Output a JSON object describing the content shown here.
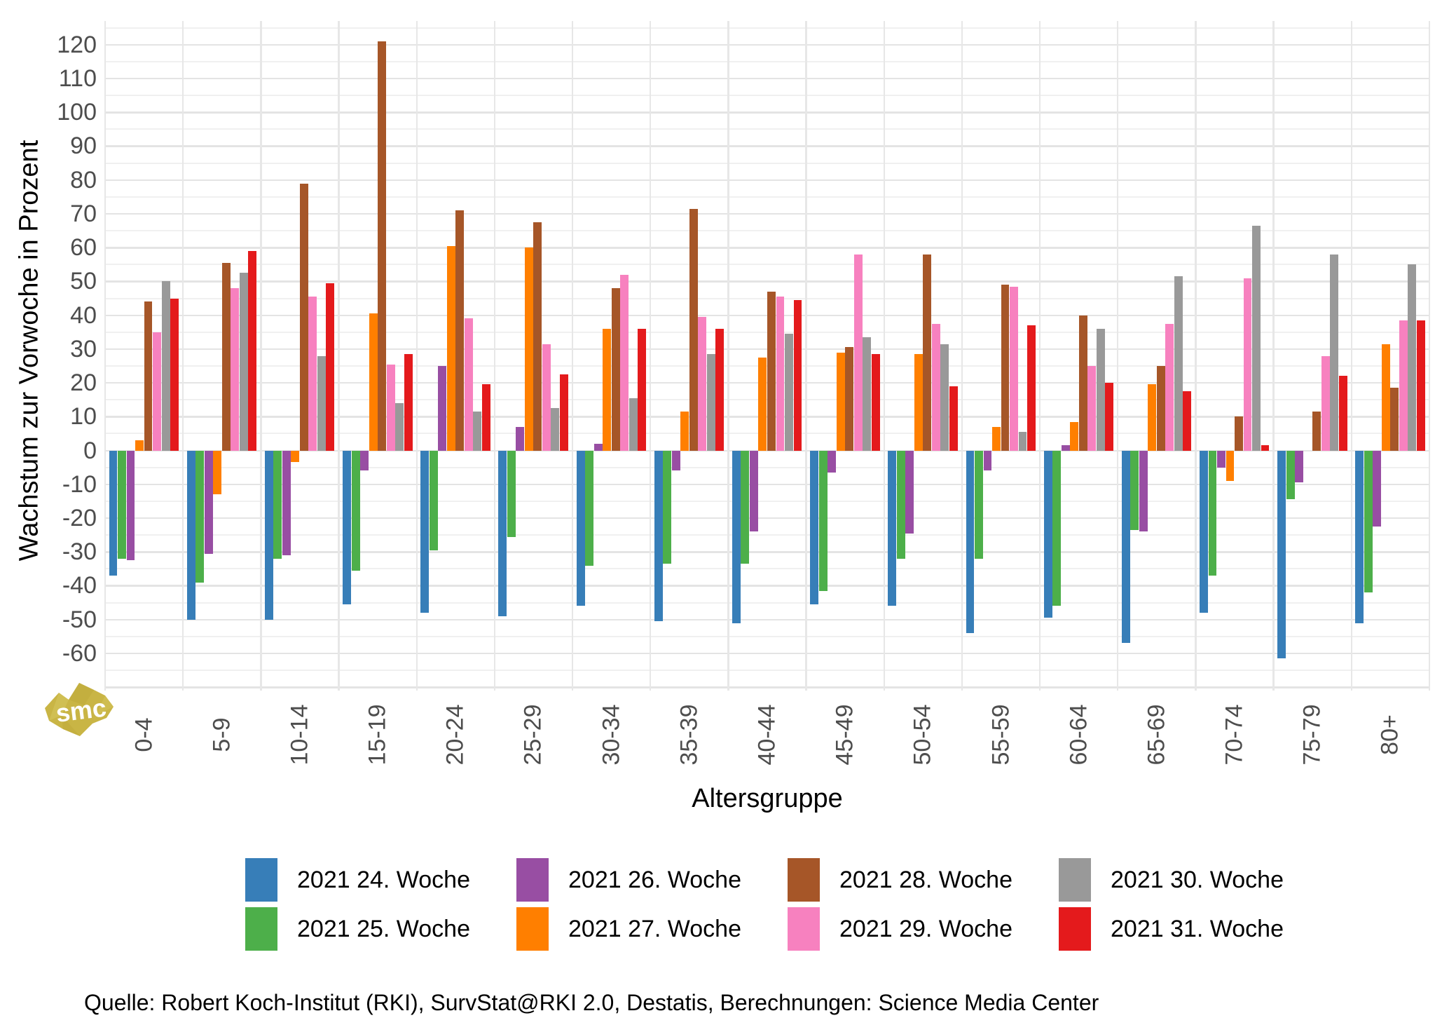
{
  "figure": {
    "background": "#ffffff"
  },
  "y_axis": {
    "title": "Wachstum zur Vorwoche in Prozent",
    "tick_color": "#4d4d4d"
  },
  "x_axis": {
    "title": "Altersgruppe",
    "tick_color": "#4d4d4d"
  },
  "footer": {
    "source": "Quelle: Robert Koch-Institut (RKI), SurvStat@RKI 2.0, Destatis, Berechnungen: Science Media Center"
  },
  "logo": {
    "text": "smc",
    "color": "#c9b545"
  },
  "chart_data": {
    "type": "bar",
    "title": "",
    "xlabel": "Altersgruppe",
    "ylabel": "Wachstum zur Vorwoche in Prozent",
    "ylim": [
      -71,
      127
    ],
    "yticks": [
      -60,
      -50,
      -40,
      -30,
      -20,
      -10,
      0,
      10,
      20,
      30,
      40,
      50,
      60,
      70,
      80,
      90,
      100,
      110,
      120
    ],
    "grid": true,
    "legend_position": "bottom",
    "categories": [
      "0-4",
      "5-9",
      "10-14",
      "15-19",
      "20-24",
      "25-29",
      "30-34",
      "35-39",
      "40-44",
      "45-49",
      "50-54",
      "55-59",
      "60-64",
      "65-69",
      "70-74",
      "75-79",
      "80+"
    ],
    "series": [
      {
        "name": "2021 24. Woche",
        "color": "#377eb8",
        "values": [
          -37,
          -50,
          -50,
          -45.5,
          -48,
          -49,
          -46,
          -50.5,
          -51,
          -45.5,
          -46,
          -54,
          -49.5,
          -57,
          -48,
          -61.5,
          -51
        ]
      },
      {
        "name": "2021 25. Woche",
        "color": "#4daf4a",
        "values": [
          -32,
          -39,
          -32,
          -35.5,
          -29.5,
          -25.5,
          -34,
          -33.5,
          -33.5,
          -41.5,
          -32,
          -32,
          -46,
          -23.5,
          -37,
          -14.5,
          -42
        ]
      },
      {
        "name": "2021 26. Woche",
        "color": "#984ea3",
        "values": [
          -32.5,
          -30.5,
          -31,
          -6,
          25,
          7,
          2,
          -6,
          -24,
          -6.5,
          -24.5,
          -6,
          1.5,
          -24,
          -5,
          -9.5,
          -22.5
        ]
      },
      {
        "name": "2021 27. Woche",
        "color": "#ff7f00",
        "values": [
          3,
          -13,
          -3.5,
          40.5,
          60.5,
          60,
          36,
          11.5,
          27.5,
          29,
          28.5,
          7,
          8.5,
          19.5,
          -9,
          0,
          31.5
        ]
      },
      {
        "name": "2021 28. Woche",
        "color": "#a65628",
        "values": [
          44,
          55.5,
          79,
          121,
          71,
          67.5,
          48,
          71.5,
          47,
          30.5,
          58,
          49,
          40,
          25,
          10,
          11.5,
          18.5
        ]
      },
      {
        "name": "2021 29. Woche",
        "color": "#f781bf",
        "values": [
          35,
          48,
          45.5,
          25.5,
          39,
          31.5,
          52,
          39.5,
          45.5,
          58,
          37.5,
          48.5,
          25,
          37.5,
          51,
          28,
          38.5
        ]
      },
      {
        "name": "2021 30. Woche",
        "color": "#999999",
        "values": [
          50,
          52.5,
          28,
          14,
          11.5,
          12.5,
          15.5,
          28.5,
          34.5,
          33.5,
          31.5,
          5.5,
          36,
          51.5,
          66.5,
          58,
          55
        ]
      },
      {
        "name": "2021 31. Woche",
        "color": "#e41a1c",
        "values": [
          45,
          59,
          49.5,
          28.5,
          19.5,
          22.5,
          36,
          36,
          44.5,
          28.5,
          19,
          37,
          20,
          17.5,
          1.5,
          22,
          38.5
        ]
      }
    ]
  }
}
